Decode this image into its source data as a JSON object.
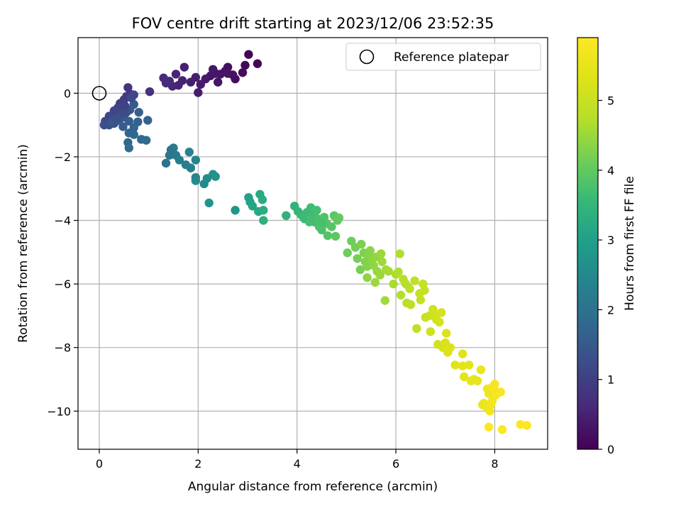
{
  "chart_data": {
    "type": "scatter",
    "title": "FOV centre drift starting at 2023/12/06 23:52:35",
    "xlabel": "Angular distance from reference (arcmin)",
    "ylabel": "Rotation from reference (arcmin)",
    "xlim": [
      -0.43,
      9.07
    ],
    "ylim": [
      -11.2,
      1.75
    ],
    "xticks": [
      0,
      2,
      4,
      6,
      8
    ],
    "yticks": [
      0,
      -2,
      -4,
      -6,
      -8,
      -10
    ],
    "xtick_labels": [
      "0",
      "2",
      "4",
      "6",
      "8"
    ],
    "ytick_labels": [
      "0",
      "−2",
      "−4",
      "−6",
      "−8",
      "−10"
    ],
    "grid": true,
    "legend": {
      "position": "upper-right",
      "label": "Reference platepar"
    },
    "reference_point": {
      "x": 0,
      "y": 0
    },
    "colorbar": {
      "label": "Hours from first FF file",
      "colormap": "viridis",
      "range": [
        0,
        5.9
      ],
      "ticks": [
        0,
        1,
        2,
        3,
        4,
        5
      ],
      "tick_labels": [
        "0",
        "1",
        "2",
        "3",
        "4",
        "5"
      ]
    },
    "points": [
      {
        "x": 3.02,
        "y": 1.22,
        "h": 0.05
      },
      {
        "x": 3.2,
        "y": 0.93,
        "h": 0.08
      },
      {
        "x": 2.95,
        "y": 0.88,
        "h": 0.12
      },
      {
        "x": 2.9,
        "y": 0.65,
        "h": 0.15
      },
      {
        "x": 2.75,
        "y": 0.45,
        "h": 0.18
      },
      {
        "x": 2.6,
        "y": 0.82,
        "h": 0.2
      },
      {
        "x": 2.55,
        "y": 0.7,
        "h": 0.22
      },
      {
        "x": 2.45,
        "y": 0.6,
        "h": 0.25
      },
      {
        "x": 2.4,
        "y": 0.35,
        "h": 0.28
      },
      {
        "x": 2.3,
        "y": 0.75,
        "h": 0.3
      },
      {
        "x": 2.25,
        "y": 0.55,
        "h": 0.32
      },
      {
        "x": 2.15,
        "y": 0.45,
        "h": 0.35
      },
      {
        "x": 2.05,
        "y": 0.28,
        "h": 0.38
      },
      {
        "x": 2.0,
        "y": 0.02,
        "h": 0.4
      },
      {
        "x": 1.95,
        "y": 0.5,
        "h": 0.42
      },
      {
        "x": 1.85,
        "y": 0.35,
        "h": 0.45
      },
      {
        "x": 1.72,
        "y": 0.82,
        "h": 0.48
      },
      {
        "x": 1.68,
        "y": 0.4,
        "h": 0.5
      },
      {
        "x": 1.6,
        "y": 0.25,
        "h": 0.52
      },
      {
        "x": 1.55,
        "y": 0.6,
        "h": 0.55
      },
      {
        "x": 1.48,
        "y": 0.22,
        "h": 0.58
      },
      {
        "x": 1.42,
        "y": 0.38,
        "h": 0.6
      },
      {
        "x": 1.35,
        "y": 0.32,
        "h": 0.62
      },
      {
        "x": 1.3,
        "y": 0.48,
        "h": 0.65
      },
      {
        "x": 2.6,
        "y": 0.62,
        "h": 0.3
      },
      {
        "x": 2.7,
        "y": 0.58,
        "h": 0.26
      },
      {
        "x": 2.35,
        "y": 0.62,
        "h": 0.33
      },
      {
        "x": 1.02,
        "y": 0.05,
        "h": 0.75
      },
      {
        "x": 0.58,
        "y": 0.18,
        "h": 0.8
      },
      {
        "x": 0.62,
        "y": -0.02,
        "h": 0.85
      },
      {
        "x": 0.55,
        "y": -0.1,
        "h": 0.9
      },
      {
        "x": 0.5,
        "y": -0.2,
        "h": 0.95
      },
      {
        "x": 0.42,
        "y": -0.32,
        "h": 1.0
      },
      {
        "x": 0.38,
        "y": -0.45,
        "h": 1.05
      },
      {
        "x": 0.3,
        "y": -0.55,
        "h": 1.1
      },
      {
        "x": 0.2,
        "y": -0.72,
        "h": 1.15
      },
      {
        "x": 0.12,
        "y": -0.88,
        "h": 1.2
      },
      {
        "x": 0.1,
        "y": -1.0,
        "h": 1.25
      },
      {
        "x": 0.2,
        "y": -1.0,
        "h": 1.3
      },
      {
        "x": 0.3,
        "y": -0.95,
        "h": 1.35
      },
      {
        "x": 0.4,
        "y": -0.85,
        "h": 1.4
      },
      {
        "x": 0.5,
        "y": -0.75,
        "h": 1.45
      },
      {
        "x": 0.62,
        "y": -0.52,
        "h": 1.5
      },
      {
        "x": 0.7,
        "y": -0.35,
        "h": 1.55
      },
      {
        "x": 0.8,
        "y": -0.6,
        "h": 1.6
      },
      {
        "x": 0.78,
        "y": -0.9,
        "h": 1.65
      },
      {
        "x": 0.7,
        "y": -1.08,
        "h": 1.7
      },
      {
        "x": 0.6,
        "y": -1.25,
        "h": 1.75
      },
      {
        "x": 0.58,
        "y": -1.55,
        "h": 1.8
      },
      {
        "x": 0.6,
        "y": -1.72,
        "h": 1.85
      },
      {
        "x": 0.7,
        "y": -1.3,
        "h": 1.8
      },
      {
        "x": 0.85,
        "y": -1.45,
        "h": 1.82
      },
      {
        "x": 0.95,
        "y": -1.48,
        "h": 1.85
      },
      {
        "x": 0.98,
        "y": -0.85,
        "h": 1.7
      },
      {
        "x": 0.65,
        "y": -0.15,
        "h": 1.2
      },
      {
        "x": 0.7,
        "y": -0.05,
        "h": 1.15
      },
      {
        "x": 0.55,
        "y": -0.6,
        "h": 1.3
      },
      {
        "x": 0.25,
        "y": -0.9,
        "h": 1.4
      },
      {
        "x": 0.48,
        "y": -1.05,
        "h": 1.55
      },
      {
        "x": 0.6,
        "y": -0.88,
        "h": 1.6
      },
      {
        "x": 0.52,
        "y": -0.4,
        "h": 1.05
      },
      {
        "x": 0.45,
        "y": -0.62,
        "h": 1.2
      },
      {
        "x": 0.35,
        "y": -0.78,
        "h": 1.35
      },
      {
        "x": 1.35,
        "y": -2.2,
        "h": 2.0
      },
      {
        "x": 1.45,
        "y": -1.78,
        "h": 2.05
      },
      {
        "x": 1.5,
        "y": -1.72,
        "h": 2.1
      },
      {
        "x": 1.55,
        "y": -1.95,
        "h": 2.15
      },
      {
        "x": 1.62,
        "y": -2.1,
        "h": 2.2
      },
      {
        "x": 1.75,
        "y": -2.25,
        "h": 2.25
      },
      {
        "x": 1.85,
        "y": -2.35,
        "h": 2.3
      },
      {
        "x": 1.82,
        "y": -1.85,
        "h": 2.35
      },
      {
        "x": 1.95,
        "y": -2.1,
        "h": 2.4
      },
      {
        "x": 1.95,
        "y": -2.65,
        "h": 2.45
      },
      {
        "x": 1.95,
        "y": -2.75,
        "h": 2.5
      },
      {
        "x": 2.12,
        "y": -2.85,
        "h": 2.55
      },
      {
        "x": 2.18,
        "y": -2.68,
        "h": 2.6
      },
      {
        "x": 2.3,
        "y": -2.55,
        "h": 2.65
      },
      {
        "x": 2.35,
        "y": -2.62,
        "h": 2.7
      },
      {
        "x": 2.22,
        "y": -3.45,
        "h": 2.75
      },
      {
        "x": 2.75,
        "y": -3.68,
        "h": 2.8
      },
      {
        "x": 1.42,
        "y": -1.95,
        "h": 2.1
      },
      {
        "x": 3.02,
        "y": -3.28,
        "h": 3.0
      },
      {
        "x": 3.05,
        "y": -3.42,
        "h": 3.05
      },
      {
        "x": 3.1,
        "y": -3.55,
        "h": 3.1
      },
      {
        "x": 3.22,
        "y": -3.72,
        "h": 3.15
      },
      {
        "x": 3.25,
        "y": -3.18,
        "h": 3.2
      },
      {
        "x": 3.3,
        "y": -3.35,
        "h": 3.25
      },
      {
        "x": 3.32,
        "y": -3.68,
        "h": 3.3
      },
      {
        "x": 3.32,
        "y": -4.0,
        "h": 3.35
      },
      {
        "x": 3.78,
        "y": -3.85,
        "h": 3.4
      },
      {
        "x": 3.95,
        "y": -3.55,
        "h": 3.45
      },
      {
        "x": 4.02,
        "y": -3.72,
        "h": 3.5
      },
      {
        "x": 4.08,
        "y": -3.82,
        "h": 3.55
      },
      {
        "x": 4.15,
        "y": -3.95,
        "h": 3.6
      },
      {
        "x": 4.2,
        "y": -3.75,
        "h": 3.62
      },
      {
        "x": 4.28,
        "y": -3.6,
        "h": 3.65
      },
      {
        "x": 4.32,
        "y": -3.85,
        "h": 3.68
      },
      {
        "x": 4.35,
        "y": -4.05,
        "h": 3.7
      },
      {
        "x": 4.4,
        "y": -3.68,
        "h": 3.72
      },
      {
        "x": 4.42,
        "y": -3.95,
        "h": 3.75
      },
      {
        "x": 4.45,
        "y": -4.2,
        "h": 3.78
      },
      {
        "x": 4.5,
        "y": -4.3,
        "h": 3.8
      },
      {
        "x": 4.55,
        "y": -3.9,
        "h": 3.82
      },
      {
        "x": 4.6,
        "y": -4.1,
        "h": 3.85
      },
      {
        "x": 4.62,
        "y": -4.48,
        "h": 3.88
      },
      {
        "x": 4.7,
        "y": -4.2,
        "h": 3.9
      },
      {
        "x": 4.75,
        "y": -3.85,
        "h": 3.92
      },
      {
        "x": 4.78,
        "y": -4.5,
        "h": 3.95
      },
      {
        "x": 4.82,
        "y": -4.0,
        "h": 3.97
      },
      {
        "x": 4.85,
        "y": -3.92,
        "h": 4.0
      },
      {
        "x": 4.25,
        "y": -4.05,
        "h": 3.7
      },
      {
        "x": 4.5,
        "y": -4.05,
        "h": 3.75
      },
      {
        "x": 4.12,
        "y": -3.88,
        "h": 3.6
      },
      {
        "x": 5.02,
        "y": -5.02,
        "h": 4.1
      },
      {
        "x": 5.1,
        "y": -4.65,
        "h": 4.12
      },
      {
        "x": 5.18,
        "y": -4.85,
        "h": 4.15
      },
      {
        "x": 5.22,
        "y": -5.2,
        "h": 4.18
      },
      {
        "x": 5.28,
        "y": -5.55,
        "h": 4.2
      },
      {
        "x": 5.3,
        "y": -4.75,
        "h": 4.22
      },
      {
        "x": 5.35,
        "y": -5.02,
        "h": 4.25
      },
      {
        "x": 5.38,
        "y": -5.3,
        "h": 4.28
      },
      {
        "x": 5.42,
        "y": -5.45,
        "h": 4.3
      },
      {
        "x": 5.45,
        "y": -5.1,
        "h": 4.32
      },
      {
        "x": 5.48,
        "y": -4.95,
        "h": 4.35
      },
      {
        "x": 5.52,
        "y": -5.25,
        "h": 4.38
      },
      {
        "x": 5.55,
        "y": -5.42,
        "h": 4.4
      },
      {
        "x": 5.6,
        "y": -5.15,
        "h": 4.42
      },
      {
        "x": 5.62,
        "y": -5.6,
        "h": 4.45
      },
      {
        "x": 5.68,
        "y": -5.72,
        "h": 4.48
      },
      {
        "x": 5.7,
        "y": -5.05,
        "h": 4.5
      },
      {
        "x": 5.72,
        "y": -5.3,
        "h": 4.52
      },
      {
        "x": 5.78,
        "y": -6.52,
        "h": 4.55
      },
      {
        "x": 5.8,
        "y": -5.55,
        "h": 4.58
      },
      {
        "x": 5.85,
        "y": -5.6,
        "h": 4.6
      },
      {
        "x": 5.95,
        "y": -6.0,
        "h": 4.62
      },
      {
        "x": 6.0,
        "y": -5.7,
        "h": 4.65
      },
      {
        "x": 6.05,
        "y": -5.62,
        "h": 4.68
      },
      {
        "x": 6.08,
        "y": -5.05,
        "h": 4.7
      },
      {
        "x": 6.1,
        "y": -6.35,
        "h": 4.72
      },
      {
        "x": 6.15,
        "y": -5.85,
        "h": 4.75
      },
      {
        "x": 6.2,
        "y": -6.0,
        "h": 4.78
      },
      {
        "x": 6.22,
        "y": -6.6,
        "h": 4.8
      },
      {
        "x": 6.28,
        "y": -6.15,
        "h": 4.82
      },
      {
        "x": 6.3,
        "y": -6.65,
        "h": 4.85
      },
      {
        "x": 6.38,
        "y": -5.9,
        "h": 4.88
      },
      {
        "x": 6.42,
        "y": -7.4,
        "h": 4.9
      },
      {
        "x": 6.48,
        "y": -6.3,
        "h": 4.92
      },
      {
        "x": 6.5,
        "y": -6.5,
        "h": 4.95
      },
      {
        "x": 6.55,
        "y": -6.0,
        "h": 4.97
      },
      {
        "x": 6.58,
        "y": -6.2,
        "h": 5.0
      },
      {
        "x": 6.6,
        "y": -7.05,
        "h": 5.02
      },
      {
        "x": 6.68,
        "y": -7.0,
        "h": 5.05
      },
      {
        "x": 6.7,
        "y": -7.5,
        "h": 5.08
      },
      {
        "x": 6.75,
        "y": -6.8,
        "h": 5.1
      },
      {
        "x": 6.78,
        "y": -6.95,
        "h": 5.12
      },
      {
        "x": 6.85,
        "y": -7.9,
        "h": 5.15
      },
      {
        "x": 6.88,
        "y": -7.2,
        "h": 5.18
      },
      {
        "x": 6.92,
        "y": -6.9,
        "h": 5.2
      },
      {
        "x": 6.95,
        "y": -8.0,
        "h": 5.22
      },
      {
        "x": 7.0,
        "y": -7.85,
        "h": 5.25
      },
      {
        "x": 7.02,
        "y": -7.55,
        "h": 5.28
      },
      {
        "x": 7.05,
        "y": -8.15,
        "h": 5.3
      },
      {
        "x": 7.1,
        "y": -8.0,
        "h": 5.32
      },
      {
        "x": 6.82,
        "y": -7.12,
        "h": 5.15
      },
      {
        "x": 5.42,
        "y": -5.8,
        "h": 4.4
      },
      {
        "x": 5.58,
        "y": -5.95,
        "h": 4.5
      },
      {
        "x": 7.2,
        "y": -8.55,
        "h": 5.35
      },
      {
        "x": 7.35,
        "y": -8.2,
        "h": 5.38
      },
      {
        "x": 7.35,
        "y": -8.58,
        "h": 5.4
      },
      {
        "x": 7.38,
        "y": -8.92,
        "h": 5.42
      },
      {
        "x": 7.48,
        "y": -8.55,
        "h": 5.45
      },
      {
        "x": 7.52,
        "y": -9.05,
        "h": 5.48
      },
      {
        "x": 7.58,
        "y": -9.0,
        "h": 5.5
      },
      {
        "x": 7.65,
        "y": -9.05,
        "h": 5.52
      },
      {
        "x": 7.72,
        "y": -8.7,
        "h": 5.55
      },
      {
        "x": 7.78,
        "y": -9.75,
        "h": 5.58
      },
      {
        "x": 7.82,
        "y": -9.85,
        "h": 5.6
      },
      {
        "x": 7.85,
        "y": -9.3,
        "h": 5.62
      },
      {
        "x": 7.88,
        "y": -9.45,
        "h": 5.65
      },
      {
        "x": 7.9,
        "y": -10.0,
        "h": 5.67
      },
      {
        "x": 7.92,
        "y": -9.8,
        "h": 5.7
      },
      {
        "x": 7.95,
        "y": -9.25,
        "h": 5.72
      },
      {
        "x": 7.98,
        "y": -9.3,
        "h": 5.74
      },
      {
        "x": 8.0,
        "y": -9.15,
        "h": 5.76
      },
      {
        "x": 8.02,
        "y": -9.5,
        "h": 5.78
      },
      {
        "x": 8.12,
        "y": -9.4,
        "h": 5.8
      },
      {
        "x": 7.88,
        "y": -10.5,
        "h": 5.84
      },
      {
        "x": 8.15,
        "y": -10.58,
        "h": 5.86
      },
      {
        "x": 8.52,
        "y": -10.42,
        "h": 5.88
      },
      {
        "x": 8.65,
        "y": -10.45,
        "h": 5.9
      },
      {
        "x": 7.95,
        "y": -9.68,
        "h": 5.7
      },
      {
        "x": 7.75,
        "y": -9.8,
        "h": 5.6
      }
    ]
  }
}
